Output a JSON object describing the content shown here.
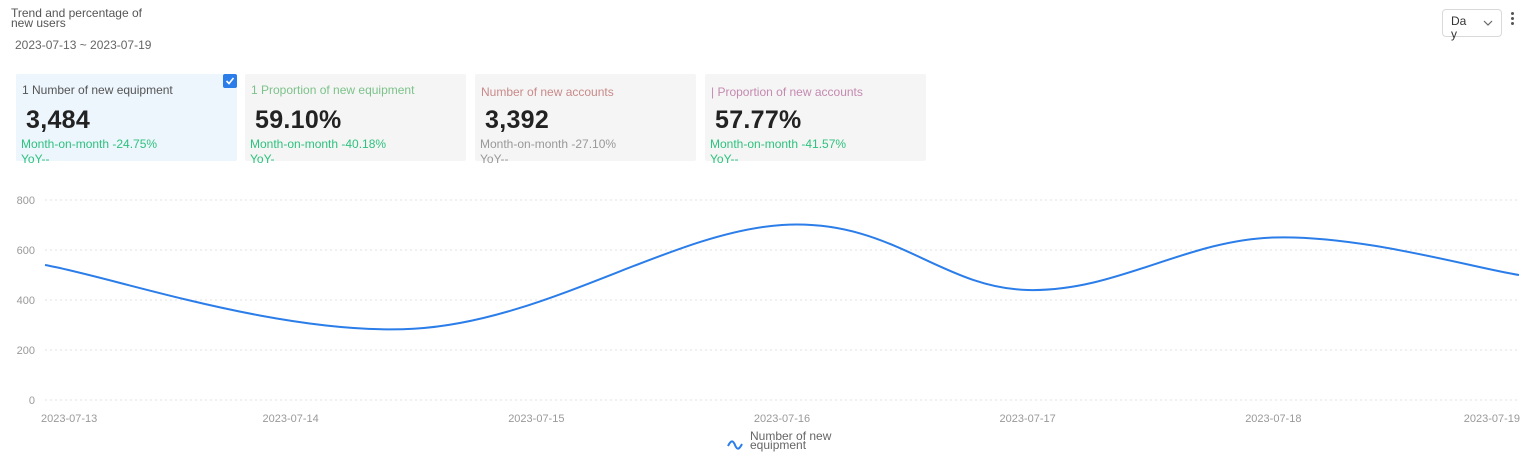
{
  "header": {
    "title": "Trend and percentage of new users",
    "date_range": "2023-07-13 ~ 2023-07-19",
    "period_select": "Day"
  },
  "cards": [
    {
      "label": "1 Number of new equipment",
      "value": "3,484",
      "mom": "Month-on-month -24.75%",
      "yoy": "YoY--",
      "label_color": "#555555",
      "value_color": "#222222",
      "mom_color": "#2ec27e",
      "selected": true
    },
    {
      "label": "1 Proportion of new equipment",
      "value": "59.10%",
      "mom": "Month-on-month -40.18%",
      "yoy": "YoY-",
      "label_color": "#7cc28a",
      "mom_color": "#2ec27e",
      "selected": false
    },
    {
      "label": "Number of new accounts",
      "value": "3,392",
      "mom": "Month-on-month -27.10%",
      "yoy": "YoY--",
      "label_color": "#c98a8a",
      "mom_color": "#999999",
      "selected": false
    },
    {
      "label": "| Proportion of new accounts",
      "value": "57.77%",
      "mom": "Month-on-month -41.57%",
      "yoy": "YoY--",
      "label_color": "#c48ab0",
      "mom_color": "#2ec27e",
      "selected": false
    }
  ],
  "chart_data": {
    "type": "line",
    "title": "",
    "xlabel": "",
    "ylabel": "",
    "ylim": [
      0,
      800
    ],
    "yticks": [
      0,
      200,
      400,
      600,
      800
    ],
    "grid": true,
    "categories": [
      "2023-07-13",
      "2023-07-14",
      "2023-07-15",
      "2023-07-16",
      "2023-07-17",
      "2023-07-18",
      "2023-07-19"
    ],
    "series": [
      {
        "name": "Number of new equipment",
        "color": "#2b7de9",
        "x": [
          0,
          1.5,
          3,
          4,
          5,
          6
        ],
        "values": [
          540,
          285,
          700,
          440,
          650,
          500
        ]
      }
    ],
    "legend": "bottom-center"
  },
  "colors": {
    "accent": "#2b7de9",
    "grid": "#e0e0e0",
    "axis_text": "#999999"
  }
}
